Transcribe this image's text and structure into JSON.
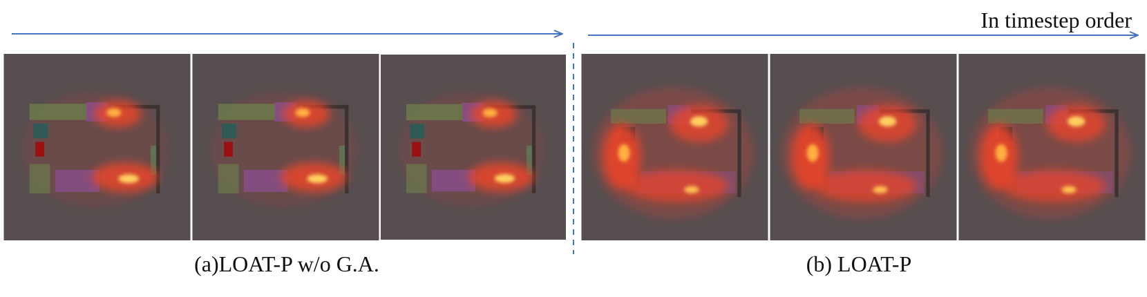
{
  "header": {
    "title": "In timestep order"
  },
  "captions": [
    "(a)LOAT-P w/o G.A.",
    "(b) LOAT-P"
  ]
}
